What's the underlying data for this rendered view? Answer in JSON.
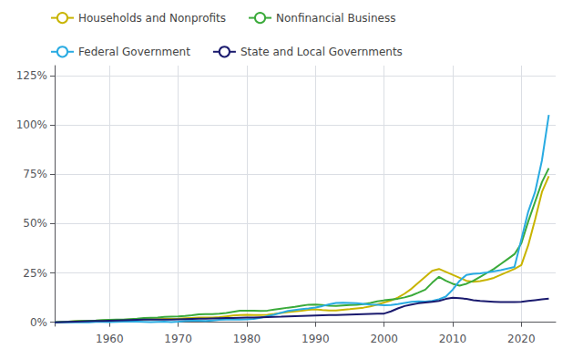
{
  "chart_data": {
    "type": "line",
    "x": [
      1952,
      1953,
      1954,
      1955,
      1956,
      1957,
      1958,
      1959,
      1960,
      1961,
      1962,
      1963,
      1964,
      1965,
      1966,
      1967,
      1968,
      1969,
      1970,
      1971,
      1972,
      1973,
      1974,
      1975,
      1976,
      1977,
      1978,
      1979,
      1980,
      1981,
      1982,
      1983,
      1984,
      1985,
      1986,
      1987,
      1988,
      1989,
      1990,
      1991,
      1992,
      1993,
      1994,
      1995,
      1996,
      1997,
      1998,
      1999,
      2000,
      2001,
      2002,
      2003,
      2004,
      2005,
      2006,
      2007,
      2008,
      2009,
      2010,
      2011,
      2012,
      2013,
      2014,
      2015,
      2016,
      2017,
      2018,
      2019,
      2020,
      2021,
      2022,
      2023,
      2024
    ],
    "series": [
      {
        "name": "Households and Nonprofits",
        "color": "#c8b400",
        "values": [
          0.0,
          0.002,
          0.003,
          0.005,
          0.006,
          0.007,
          0.008,
          0.009,
          0.01,
          0.011,
          0.012,
          0.013,
          0.014,
          0.015,
          0.016,
          0.016,
          0.017,
          0.017,
          0.018,
          0.02,
          0.022,
          0.024,
          0.024,
          0.024,
          0.026,
          0.03,
          0.034,
          0.037,
          0.038,
          0.037,
          0.036,
          0.038,
          0.042,
          0.047,
          0.052,
          0.055,
          0.059,
          0.063,
          0.065,
          0.062,
          0.06,
          0.06,
          0.063,
          0.066,
          0.07,
          0.074,
          0.08,
          0.09,
          0.1,
          0.11,
          0.125,
          0.145,
          0.17,
          0.2,
          0.23,
          0.26,
          0.27,
          0.255,
          0.24,
          0.225,
          0.21,
          0.205,
          0.208,
          0.215,
          0.225,
          0.24,
          0.255,
          0.27,
          0.29,
          0.39,
          0.52,
          0.66,
          0.74
        ]
      },
      {
        "name": "Nonfinancial Business",
        "color": "#3aaa3a",
        "values": [
          0.0,
          0.002,
          0.003,
          0.005,
          0.007,
          0.008,
          0.009,
          0.011,
          0.012,
          0.013,
          0.014,
          0.016,
          0.018,
          0.021,
          0.023,
          0.024,
          0.027,
          0.029,
          0.03,
          0.032,
          0.035,
          0.04,
          0.041,
          0.041,
          0.043,
          0.047,
          0.053,
          0.058,
          0.059,
          0.058,
          0.057,
          0.059,
          0.064,
          0.069,
          0.074,
          0.078,
          0.084,
          0.089,
          0.09,
          0.087,
          0.084,
          0.083,
          0.085,
          0.087,
          0.089,
          0.092,
          0.098,
          0.106,
          0.111,
          0.115,
          0.119,
          0.126,
          0.136,
          0.15,
          0.165,
          0.2,
          0.23,
          0.21,
          0.195,
          0.185,
          0.195,
          0.21,
          0.23,
          0.25,
          0.27,
          0.295,
          0.32,
          0.345,
          0.4,
          0.51,
          0.61,
          0.71,
          0.78
        ]
      },
      {
        "name": "Federal Government",
        "color": "#29abe2",
        "values": [
          0.0,
          0.0,
          0.001,
          0.0,
          0.0,
          0.0,
          0.002,
          0.002,
          0.001,
          0.002,
          0.003,
          0.003,
          0.003,
          0.002,
          0.001,
          0.002,
          0.003,
          0.001,
          0.003,
          0.006,
          0.008,
          0.008,
          0.006,
          0.009,
          0.012,
          0.013,
          0.014,
          0.013,
          0.015,
          0.017,
          0.023,
          0.031,
          0.039,
          0.048,
          0.057,
          0.062,
          0.067,
          0.07,
          0.075,
          0.082,
          0.091,
          0.098,
          0.099,
          0.098,
          0.096,
          0.093,
          0.09,
          0.088,
          0.086,
          0.087,
          0.092,
          0.098,
          0.103,
          0.106,
          0.105,
          0.108,
          0.116,
          0.13,
          0.165,
          0.21,
          0.24,
          0.245,
          0.248,
          0.252,
          0.258,
          0.264,
          0.272,
          0.28,
          0.42,
          0.56,
          0.66,
          0.82,
          1.05
        ]
      },
      {
        "name": "State and Local Governments",
        "color": "#1a1a6e",
        "values": [
          0.0,
          0.001,
          0.002,
          0.003,
          0.004,
          0.005,
          0.006,
          0.007,
          0.008,
          0.009,
          0.01,
          0.011,
          0.012,
          0.013,
          0.013,
          0.013,
          0.014,
          0.014,
          0.015,
          0.016,
          0.017,
          0.018,
          0.018,
          0.019,
          0.02,
          0.021,
          0.022,
          0.023,
          0.024,
          0.024,
          0.025,
          0.026,
          0.027,
          0.028,
          0.03,
          0.031,
          0.032,
          0.033,
          0.034,
          0.035,
          0.036,
          0.037,
          0.038,
          0.039,
          0.04,
          0.041,
          0.042,
          0.043,
          0.044,
          0.055,
          0.07,
          0.082,
          0.09,
          0.096,
          0.1,
          0.104,
          0.108,
          0.118,
          0.124,
          0.122,
          0.118,
          0.112,
          0.108,
          0.106,
          0.104,
          0.102,
          0.102,
          0.102,
          0.104,
          0.108,
          0.112,
          0.116,
          0.12
        ]
      }
    ],
    "xlim": [
      1952,
      2025
    ],
    "xticks": [
      1960,
      1970,
      1980,
      1990,
      2000,
      2010,
      2020
    ],
    "ylim": [
      -0.02,
      1.3
    ],
    "yticks": [
      {
        "value": 0,
        "label": "0%"
      },
      {
        "value": 0.25,
        "label": "25%"
      },
      {
        "value": 0.5,
        "label": "50%"
      },
      {
        "value": 0.75,
        "label": "75%"
      },
      {
        "value": 1,
        "label": "100%"
      },
      {
        "value": 1.25,
        "label": "125%"
      }
    ],
    "grid": true,
    "legend": "upper left"
  }
}
